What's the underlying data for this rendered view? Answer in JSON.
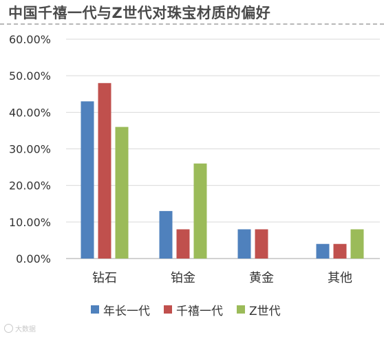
{
  "chart_data": {
    "type": "bar",
    "title": "中国千禧一代与Z世代对珠宝材质的偏好",
    "categories": [
      "钻石",
      "铂金",
      "黄金",
      "其他"
    ],
    "series": [
      {
        "name": "年长一代",
        "color": "#4f81bd",
        "values": [
          43,
          13,
          8,
          4
        ]
      },
      {
        "name": "千禧一代",
        "color": "#c0504d",
        "values": [
          48,
          8,
          8,
          4
        ]
      },
      {
        "name": "Z世代",
        "color": "#9bbb59",
        "values": [
          36,
          26,
          0,
          8
        ]
      }
    ],
    "yticks": [
      "0.00%",
      "10.00%",
      "20.00%",
      "30.00%",
      "40.00%",
      "50.00%",
      "60.00%"
    ],
    "ylim": [
      0,
      60
    ],
    "grid": true,
    "legend_position": "bottom"
  },
  "watermark": "大数据"
}
